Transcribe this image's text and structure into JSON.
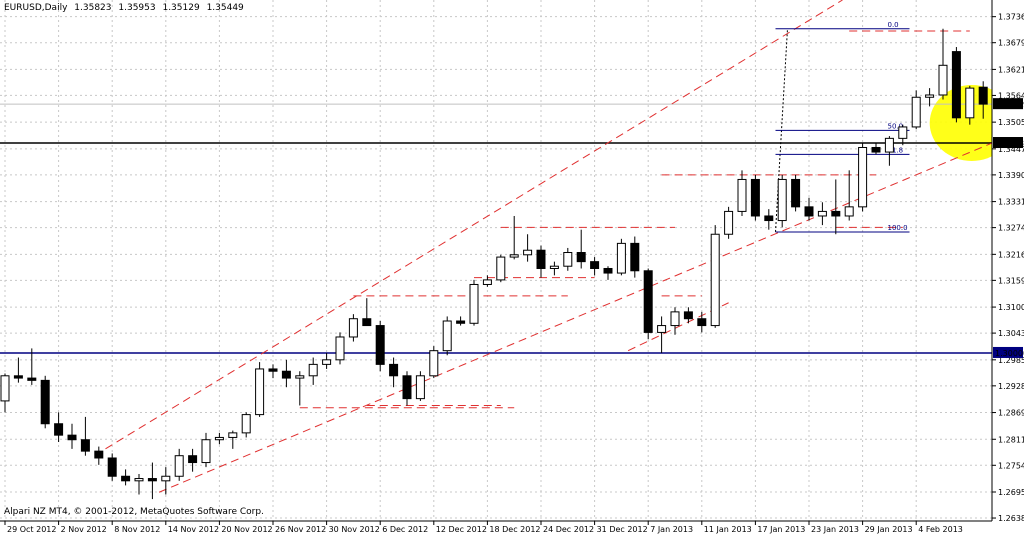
{
  "header": {
    "symbol": "EURUSD,Daily",
    "open": "1.35823",
    "high": "1.35953",
    "low": "1.35129",
    "close": "1.35449"
  },
  "footer": {
    "copyright": "Alpari NZ MT4, © 2001-2012, MetaQuotes Software Corp."
  },
  "colors": {
    "candle_up": "#ffffff",
    "candle_down": "#000000",
    "grid": "#c8c8c8",
    "trend": "#e03030",
    "level_black": "#000000",
    "level_navy": "#000080",
    "fib": "#000080",
    "highlight": "#ffff00",
    "ask_line": "#c0c0c0"
  },
  "chart_data": {
    "type": "candlestick",
    "symbol": "EURUSD",
    "timeframe": "Daily",
    "ylim": [
      1.2632,
      1.3773
    ],
    "y_ticks": [
      "1.37365",
      "1.36795",
      "1.36210",
      "1.35640",
      "1.35055",
      "1.34470",
      "1.33900",
      "1.33315",
      "1.32745",
      "1.32160",
      "1.31590",
      "1.31005",
      "1.30435",
      "1.29850",
      "1.29280",
      "1.28695",
      "1.28110",
      "1.27540",
      "1.26955",
      "1.26385"
    ],
    "x_ticks": [
      {
        "label": "29 Oct 2012",
        "bar": 0
      },
      {
        "label": "2 Nov 2012",
        "bar": 4
      },
      {
        "label": "8 Nov 2012",
        "bar": 8
      },
      {
        "label": "14 Nov 2012",
        "bar": 12
      },
      {
        "label": "20 Nov 2012",
        "bar": 16
      },
      {
        "label": "26 Nov 2012",
        "bar": 20
      },
      {
        "label": "30 Nov 2012",
        "bar": 24
      },
      {
        "label": "6 Dec 2012",
        "bar": 28
      },
      {
        "label": "12 Dec 2012",
        "bar": 32
      },
      {
        "label": "18 Dec 2012",
        "bar": 36
      },
      {
        "label": "24 Dec 2012",
        "bar": 40
      },
      {
        "label": "31 Dec 2012",
        "bar": 44
      },
      {
        "label": "7 Jan 2013",
        "bar": 48
      },
      {
        "label": "11 Jan 2013",
        "bar": 52
      },
      {
        "label": "17 Jan 2013",
        "bar": 56
      },
      {
        "label": "23 Jan 2013",
        "bar": 60
      },
      {
        "label": "29 Jan 2013",
        "bar": 64
      },
      {
        "label": "4 Feb 2013",
        "bar": 68
      }
    ],
    "candles": [
      {
        "o": 1.2895,
        "h": 1.2955,
        "l": 1.287,
        "c": 1.295
      },
      {
        "o": 1.295,
        "h": 1.299,
        "l": 1.2935,
        "c": 1.2945
      },
      {
        "o": 1.2945,
        "h": 1.301,
        "l": 1.293,
        "c": 1.294
      },
      {
        "o": 1.294,
        "h": 1.295,
        "l": 1.2835,
        "c": 1.2845
      },
      {
        "o": 1.2845,
        "h": 1.287,
        "l": 1.2805,
        "c": 1.282
      },
      {
        "o": 1.282,
        "h": 1.2845,
        "l": 1.279,
        "c": 1.281
      },
      {
        "o": 1.281,
        "h": 1.286,
        "l": 1.2775,
        "c": 1.2785
      },
      {
        "o": 1.2785,
        "h": 1.2795,
        "l": 1.2755,
        "c": 1.277
      },
      {
        "o": 1.277,
        "h": 1.278,
        "l": 1.272,
        "c": 1.273
      },
      {
        "o": 1.273,
        "h": 1.2745,
        "l": 1.271,
        "c": 1.272
      },
      {
        "o": 1.272,
        "h": 1.2735,
        "l": 1.269,
        "c": 1.2725
      },
      {
        "o": 1.2725,
        "h": 1.276,
        "l": 1.268,
        "c": 1.272
      },
      {
        "o": 1.272,
        "h": 1.275,
        "l": 1.269,
        "c": 1.273
      },
      {
        "o": 1.273,
        "h": 1.279,
        "l": 1.272,
        "c": 1.2775
      },
      {
        "o": 1.2775,
        "h": 1.279,
        "l": 1.274,
        "c": 1.276
      },
      {
        "o": 1.276,
        "h": 1.2825,
        "l": 1.275,
        "c": 1.281
      },
      {
        "o": 1.281,
        "h": 1.2825,
        "l": 1.28,
        "c": 1.2815
      },
      {
        "o": 1.2815,
        "h": 1.283,
        "l": 1.279,
        "c": 1.2825
      },
      {
        "o": 1.2825,
        "h": 1.287,
        "l": 1.2815,
        "c": 1.2865
      },
      {
        "o": 1.2865,
        "h": 1.298,
        "l": 1.286,
        "c": 1.2965
      },
      {
        "o": 1.2965,
        "h": 1.2975,
        "l": 1.2945,
        "c": 1.296
      },
      {
        "o": 1.296,
        "h": 1.2985,
        "l": 1.2925,
        "c": 1.2945
      },
      {
        "o": 1.2945,
        "h": 1.296,
        "l": 1.2885,
        "c": 1.295
      },
      {
        "o": 1.295,
        "h": 1.299,
        "l": 1.293,
        "c": 1.2975
      },
      {
        "o": 1.2975,
        "h": 1.3,
        "l": 1.2965,
        "c": 1.2985
      },
      {
        "o": 1.2985,
        "h": 1.3045,
        "l": 1.2975,
        "c": 1.3035
      },
      {
        "o": 1.3035,
        "h": 1.3085,
        "l": 1.3025,
        "c": 1.3075
      },
      {
        "o": 1.3075,
        "h": 1.312,
        "l": 1.306,
        "c": 1.306
      },
      {
        "o": 1.306,
        "h": 1.307,
        "l": 1.296,
        "c": 1.2975
      },
      {
        "o": 1.2975,
        "h": 1.299,
        "l": 1.2925,
        "c": 1.295
      },
      {
        "o": 1.295,
        "h": 1.296,
        "l": 1.2885,
        "c": 1.29
      },
      {
        "o": 1.29,
        "h": 1.296,
        "l": 1.2895,
        "c": 1.295
      },
      {
        "o": 1.295,
        "h": 1.3015,
        "l": 1.2945,
        "c": 1.3005
      },
      {
        "o": 1.3005,
        "h": 1.308,
        "l": 1.2995,
        "c": 1.307
      },
      {
        "o": 1.307,
        "h": 1.308,
        "l": 1.306,
        "c": 1.3065
      },
      {
        "o": 1.3065,
        "h": 1.316,
        "l": 1.306,
        "c": 1.315
      },
      {
        "o": 1.315,
        "h": 1.317,
        "l": 1.3145,
        "c": 1.316
      },
      {
        "o": 1.316,
        "h": 1.3215,
        "l": 1.3155,
        "c": 1.321
      },
      {
        "o": 1.321,
        "h": 1.33,
        "l": 1.3205,
        "c": 1.3215
      },
      {
        "o": 1.3215,
        "h": 1.326,
        "l": 1.32,
        "c": 1.3225
      },
      {
        "o": 1.3225,
        "h": 1.3235,
        "l": 1.3165,
        "c": 1.3185
      },
      {
        "o": 1.3185,
        "h": 1.32,
        "l": 1.317,
        "c": 1.319
      },
      {
        "o": 1.319,
        "h": 1.323,
        "l": 1.318,
        "c": 1.322
      },
      {
        "o": 1.322,
        "h": 1.327,
        "l": 1.3185,
        "c": 1.32
      },
      {
        "o": 1.32,
        "h": 1.321,
        "l": 1.317,
        "c": 1.3185
      },
      {
        "o": 1.3185,
        "h": 1.319,
        "l": 1.316,
        "c": 1.3175
      },
      {
        "o": 1.3175,
        "h": 1.325,
        "l": 1.317,
        "c": 1.324
      },
      {
        "o": 1.324,
        "h": 1.3255,
        "l": 1.3165,
        "c": 1.318
      },
      {
        "o": 1.318,
        "h": 1.3185,
        "l": 1.303,
        "c": 1.3045
      },
      {
        "o": 1.3045,
        "h": 1.308,
        "l": 1.3,
        "c": 1.306
      },
      {
        "o": 1.306,
        "h": 1.31,
        "l": 1.304,
        "c": 1.309
      },
      {
        "o": 1.309,
        "h": 1.31,
        "l": 1.3065,
        "c": 1.3075
      },
      {
        "o": 1.3075,
        "h": 1.309,
        "l": 1.3045,
        "c": 1.306
      },
      {
        "o": 1.306,
        "h": 1.328,
        "l": 1.3055,
        "c": 1.326
      },
      {
        "o": 1.326,
        "h": 1.332,
        "l": 1.325,
        "c": 1.331
      },
      {
        "o": 1.331,
        "h": 1.34,
        "l": 1.33,
        "c": 1.338
      },
      {
        "o": 1.338,
        "h": 1.339,
        "l": 1.329,
        "c": 1.33
      },
      {
        "o": 1.33,
        "h": 1.3315,
        "l": 1.327,
        "c": 1.329
      },
      {
        "o": 1.329,
        "h": 1.339,
        "l": 1.3275,
        "c": 1.338
      },
      {
        "o": 1.338,
        "h": 1.339,
        "l": 1.331,
        "c": 1.332
      },
      {
        "o": 1.332,
        "h": 1.334,
        "l": 1.329,
        "c": 1.33
      },
      {
        "o": 1.33,
        "h": 1.333,
        "l": 1.328,
        "c": 1.331
      },
      {
        "o": 1.331,
        "h": 1.338,
        "l": 1.326,
        "c": 1.33
      },
      {
        "o": 1.33,
        "h": 1.34,
        "l": 1.329,
        "c": 1.332
      },
      {
        "o": 1.332,
        "h": 1.346,
        "l": 1.331,
        "c": 1.345
      },
      {
        "o": 1.345,
        "h": 1.346,
        "l": 1.3435,
        "c": 1.344
      },
      {
        "o": 1.344,
        "h": 1.3475,
        "l": 1.341,
        "c": 1.347
      },
      {
        "o": 1.347,
        "h": 1.35,
        "l": 1.3455,
        "c": 1.3495
      },
      {
        "o": 1.3495,
        "h": 1.3575,
        "l": 1.349,
        "c": 1.356
      },
      {
        "o": 1.356,
        "h": 1.358,
        "l": 1.354,
        "c": 1.3565
      },
      {
        "o": 1.3565,
        "h": 1.371,
        "l": 1.3555,
        "c": 1.363
      },
      {
        "o": 1.366,
        "h": 1.367,
        "l": 1.3505,
        "c": 1.3515
      },
      {
        "o": 1.3515,
        "h": 1.3585,
        "l": 1.35,
        "c": 1.358
      },
      {
        "o": 1.3582,
        "h": 1.3595,
        "l": 1.3513,
        "c": 1.3545
      }
    ],
    "horizontal_levels": [
      {
        "price": 1.34598,
        "label": "1.34598",
        "color": "#000000"
      },
      {
        "price": 1.3,
        "label": "1.30000",
        "color": "#000080"
      }
    ],
    "current_price": {
      "price": 1.35449,
      "label": "1.35449"
    },
    "fibonacci": {
      "high": 1.371,
      "low": 1.3265,
      "levels": [
        {
          "ratio": 0.0,
          "label": "0.0"
        },
        {
          "ratio": 0.5,
          "label": "50.0"
        },
        {
          "ratio": 0.618,
          "label": "61.8"
        },
        {
          "ratio": 1.0,
          "label": "100.0"
        }
      ]
    },
    "trend_lines": [
      {
        "bar1": 7.5,
        "p1": 1.279,
        "bar2": 62.5,
        "p2": 1.3773
      },
      {
        "bar1": 11.5,
        "p1": 1.2695,
        "bar2": 77.5,
        "p2": 1.3507
      },
      {
        "bar1": 46.5,
        "p1": 1.3005,
        "bar2": 54,
        "p2": 1.311
      }
    ],
    "dashed_levels": [
      {
        "bar1": 22,
        "bar2": 38,
        "price": 1.288
      },
      {
        "bar1": 27,
        "bar2": 37,
        "price": 1.2885
      },
      {
        "bar1": 26,
        "bar2": 42,
        "price": 1.3125
      },
      {
        "bar1": 35,
        "bar2": 44,
        "price": 1.3165
      },
      {
        "bar1": 37,
        "bar2": 50,
        "price": 1.3275
      },
      {
        "bar1": 49,
        "bar2": 52,
        "price": 1.3125
      },
      {
        "bar1": 49,
        "bar2": 65,
        "price": 1.339
      },
      {
        "bar1": 62,
        "bar2": 67,
        "price": 1.3275
      },
      {
        "bar1": 63,
        "bar2": 72,
        "price": 1.3705
      }
    ],
    "highlight_ellipse": {
      "bar": 70.5,
      "price": 1.353
    },
    "grid": true
  }
}
